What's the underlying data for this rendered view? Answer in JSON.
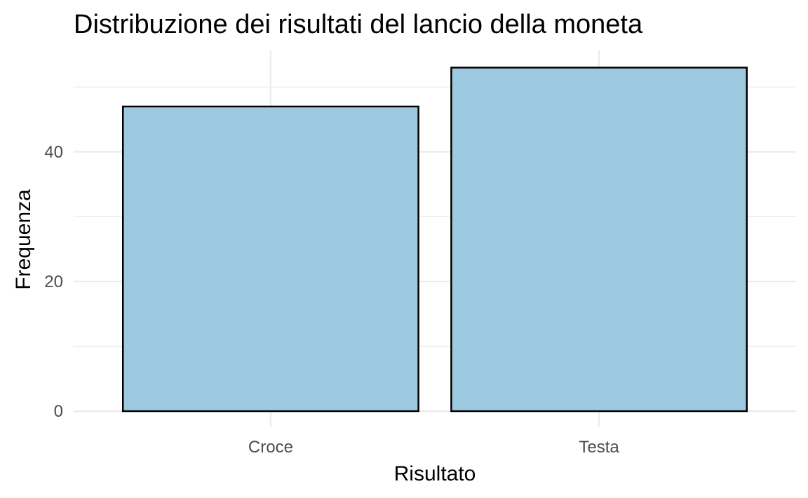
{
  "chart_data": {
    "type": "bar",
    "title": "Distribuzione dei risultati del lancio della moneta",
    "xlabel": "Risultato",
    "ylabel": "Frequenza",
    "categories": [
      "Croce",
      "Testa"
    ],
    "values": [
      47,
      53
    ],
    "ylim": [
      0,
      55.65
    ],
    "y_ticks": [
      0,
      20,
      40
    ],
    "y_tick_labels": [
      "0",
      "20",
      "40"
    ],
    "y_minor_ticks": [
      10,
      30,
      50
    ],
    "grid": true,
    "legend": "none",
    "colors": {
      "bar_fill": "#9ecae1",
      "bar_outline": "#000000",
      "grid": "#ebebeb",
      "tick_text": "#4d4d4d",
      "text": "#000000"
    }
  }
}
